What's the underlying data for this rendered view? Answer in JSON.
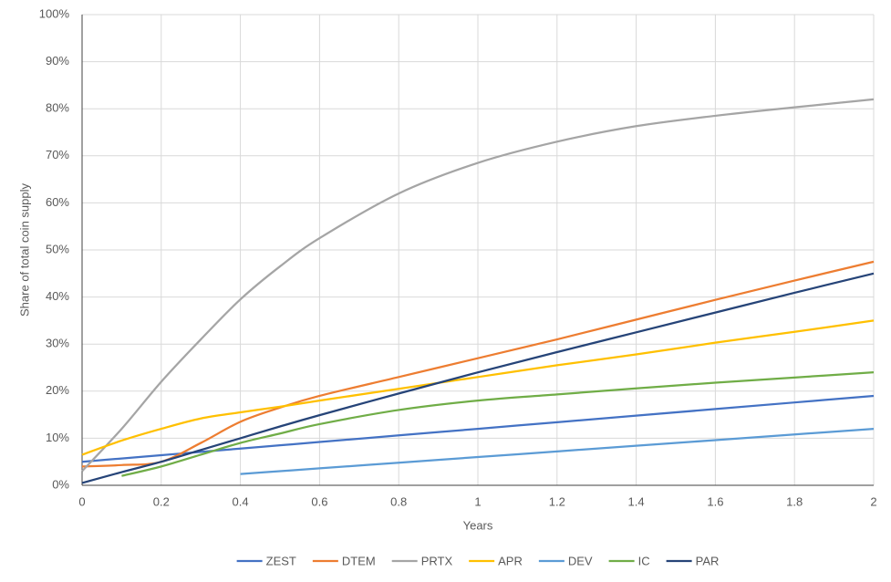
{
  "chart_data": {
    "type": "line",
    "x_label": "Years",
    "y_label": "Share of total coin supply",
    "x": [
      0,
      0.1,
      0.2,
      0.3,
      0.4,
      0.5,
      0.6,
      0.8,
      1,
      1.2,
      1.4,
      1.6,
      1.8,
      2
    ],
    "series": [
      {
        "name": "ZEST",
        "color": "#4472c4",
        "values": [
          5,
          5.7,
          6.4,
          7.1,
          7.8,
          8.5,
          9.2,
          10.6,
          12,
          13.4,
          14.8,
          16.2,
          17.6,
          19
        ]
      },
      {
        "name": "DTEM",
        "color": "#ed7d31",
        "values": [
          4,
          4.3,
          5,
          9,
          13.5,
          16.5,
          19,
          23,
          27,
          31,
          35.2,
          39.4,
          43.5,
          47.5
        ]
      },
      {
        "name": "PRTX",
        "color": "#a5a5a5",
        "values": [
          3,
          12,
          22,
          31,
          39.5,
          46.5,
          52.5,
          62,
          68.5,
          73,
          76.3,
          78.5,
          80.3,
          82
        ]
      },
      {
        "name": "APR",
        "color": "#ffc000",
        "values": [
          6.5,
          9.5,
          12,
          14.2,
          15.5,
          16.7,
          18,
          20.5,
          23,
          25.5,
          27.8,
          30.3,
          32.6,
          35
        ]
      },
      {
        "name": "DEV",
        "color": "#5b9bd5",
        "values": [
          null,
          null,
          null,
          null,
          2.4,
          3,
          3.6,
          4.8,
          6,
          7.2,
          8.4,
          9.6,
          10.8,
          12
        ]
      },
      {
        "name": "IC",
        "color": "#70ad47",
        "values": [
          null,
          2,
          4,
          6.5,
          9,
          11,
          13,
          16,
          18,
          19.3,
          20.6,
          21.8,
          22.9,
          24
        ]
      },
      {
        "name": "PAR",
        "color": "#264478",
        "values": [
          0.5,
          2.8,
          5,
          7.5,
          10,
          12.5,
          14.9,
          19.5,
          24,
          28.3,
          32.5,
          36.7,
          40.9,
          45
        ]
      }
    ],
    "xlim": [
      0,
      2
    ],
    "xticks": [
      0,
      0.2,
      0.4,
      0.6,
      0.8,
      1,
      1.2,
      1.4,
      1.6,
      1.8,
      2
    ],
    "ylim": [
      0,
      100
    ],
    "yticks": [
      {
        "value": 0,
        "label": "0%"
      },
      {
        "value": 10,
        "label": "10%"
      },
      {
        "value": 20,
        "label": "20%"
      },
      {
        "value": 30,
        "label": "30%"
      },
      {
        "value": 40,
        "label": "40%"
      },
      {
        "value": 50,
        "label": "50%"
      },
      {
        "value": 60,
        "label": "60%"
      },
      {
        "value": 70,
        "label": "70%"
      },
      {
        "value": 80,
        "label": "80%"
      },
      {
        "value": 90,
        "label": "90%"
      },
      {
        "value": 100,
        "label": "100%"
      }
    ],
    "grid": true,
    "legend": "bottom"
  }
}
